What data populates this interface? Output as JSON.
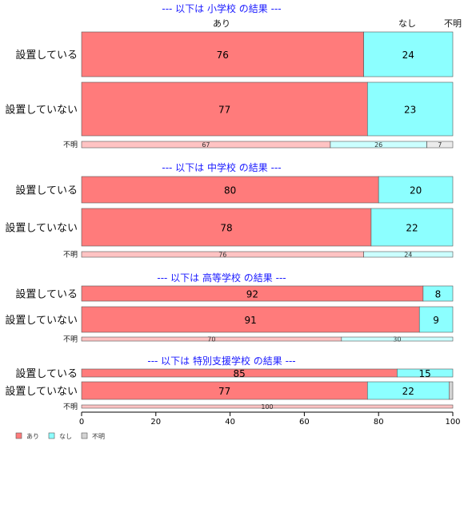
{
  "chart_data": {
    "type": "bar",
    "orientation": "horizontal-stacked-percent",
    "xlim": [
      0,
      100
    ],
    "xticks": [
      "0",
      "20",
      "40",
      "60",
      "80",
      "100"
    ],
    "column_labels": [
      "あり",
      "なし",
      "不明"
    ],
    "legend": [
      {
        "label": "あり",
        "color": "#ff7b7b"
      },
      {
        "label": "なし",
        "color": "#8cffff"
      },
      {
        "label": "不明",
        "color": "#d3d3d3"
      }
    ],
    "legend_position": "bottom-left",
    "groups": [
      {
        "title": "--- 以下は 小学校 の結果 ---",
        "rows": [
          {
            "label": "設置している",
            "values": [
              76,
              24,
              0
            ],
            "texts": [
              "76",
              "24",
              ""
            ]
          },
          {
            "label": "設置していない",
            "values": [
              77,
              23,
              0
            ],
            "texts": [
              "77",
              "23",
              ""
            ]
          },
          {
            "label": "不明",
            "values": [
              67,
              26,
              7
            ],
            "texts": [
              "67",
              "26",
              "7"
            ],
            "small": true
          }
        ]
      },
      {
        "title": "--- 以下は 中学校 の結果 ---",
        "rows": [
          {
            "label": "設置している",
            "values": [
              80,
              20,
              0
            ],
            "texts": [
              "80",
              "20",
              ""
            ]
          },
          {
            "label": "設置していない",
            "values": [
              78,
              22,
              0
            ],
            "texts": [
              "78",
              "22",
              ""
            ]
          },
          {
            "label": "不明",
            "values": [
              76,
              24,
              0
            ],
            "texts": [
              "76",
              "24",
              ""
            ],
            "small": true
          }
        ]
      },
      {
        "title": "--- 以下は 高等学校 の結果 ---",
        "rows": [
          {
            "label": "設置している",
            "values": [
              92,
              8,
              0
            ],
            "texts": [
              "92",
              "8",
              ""
            ]
          },
          {
            "label": "設置していない",
            "values": [
              91,
              9,
              0
            ],
            "texts": [
              "91",
              "9",
              ""
            ]
          },
          {
            "label": "不明",
            "values": [
              70,
              30,
              0
            ],
            "texts": [
              "70",
              "30",
              ""
            ],
            "small": true
          }
        ]
      },
      {
        "title": "--- 以下は 特別支援学校 の結果 ---",
        "rows": [
          {
            "label": "設置している",
            "values": [
              85,
              15,
              0
            ],
            "texts": [
              "85",
              "15",
              ""
            ]
          },
          {
            "label": "設置していない",
            "values": [
              77,
              22,
              1
            ],
            "texts": [
              "77",
              "22",
              ""
            ]
          },
          {
            "label": "不明",
            "values": [
              100,
              0,
              0
            ],
            "texts": [
              "100",
              "",
              ""
            ],
            "small": true
          }
        ]
      }
    ]
  }
}
